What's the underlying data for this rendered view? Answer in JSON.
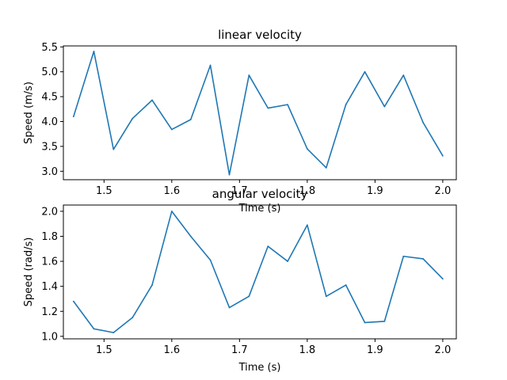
{
  "chart_data": [
    {
      "type": "line",
      "title": "linear velocity",
      "xlabel": "Time (s)",
      "ylabel": "Speed (m/s)",
      "xlim": [
        1.44,
        2.02
      ],
      "ylim": [
        2.83,
        5.52
      ],
      "xticks": [
        1.5,
        1.6,
        1.7,
        1.8,
        1.9,
        2.0
      ],
      "xtick_labels": [
        "1.5",
        "1.6",
        "1.7",
        "1.8",
        "1.9",
        "2.0"
      ],
      "yticks": [
        3.0,
        3.5,
        4.0,
        4.5,
        5.0,
        5.5
      ],
      "ytick_labels": [
        "3.0",
        "3.5",
        "4.0",
        "4.5",
        "5.0",
        "5.5"
      ],
      "grid": false,
      "color": "#1f77b4",
      "series": [
        {
          "x": [
            1.455,
            1.485,
            1.514,
            1.542,
            1.571,
            1.6,
            1.628,
            1.657,
            1.685,
            1.714,
            1.742,
            1.771,
            1.8,
            1.828,
            1.857,
            1.885,
            1.914,
            1.942,
            1.971,
            2.0
          ],
          "values": [
            4.1,
            5.41,
            3.44,
            4.06,
            4.43,
            3.84,
            4.04,
            5.13,
            2.93,
            4.93,
            4.27,
            4.34,
            3.45,
            3.07,
            4.34,
            5.0,
            4.3,
            4.93,
            3.98,
            3.31
          ]
        }
      ]
    },
    {
      "type": "line",
      "title": "angular velocity",
      "xlabel": "Time (s)",
      "ylabel": "Speed (rad/s)",
      "xlim": [
        1.44,
        2.02
      ],
      "ylim": [
        0.98,
        2.05
      ],
      "xticks": [
        1.5,
        1.6,
        1.7,
        1.8,
        1.9,
        2.0
      ],
      "xtick_labels": [
        "1.5",
        "1.6",
        "1.7",
        "1.8",
        "1.9",
        "2.0"
      ],
      "yticks": [
        1.0,
        1.2,
        1.4,
        1.6,
        1.8,
        2.0
      ],
      "ytick_labels": [
        "1.0",
        "1.2",
        "1.4",
        "1.6",
        "1.8",
        "2.0"
      ],
      "grid": false,
      "color": "#1f77b4",
      "series": [
        {
          "x": [
            1.455,
            1.485,
            1.514,
            1.542,
            1.571,
            1.6,
            1.628,
            1.657,
            1.685,
            1.714,
            1.742,
            1.771,
            1.8,
            1.828,
            1.857,
            1.885,
            1.914,
            1.942,
            1.971,
            2.0
          ],
          "values": [
            1.28,
            1.06,
            1.03,
            1.15,
            1.41,
            2.0,
            1.8,
            1.61,
            1.23,
            1.32,
            1.72,
            1.6,
            1.89,
            1.32,
            1.41,
            1.11,
            1.12,
            1.64,
            1.62,
            1.46
          ]
        }
      ]
    }
  ]
}
